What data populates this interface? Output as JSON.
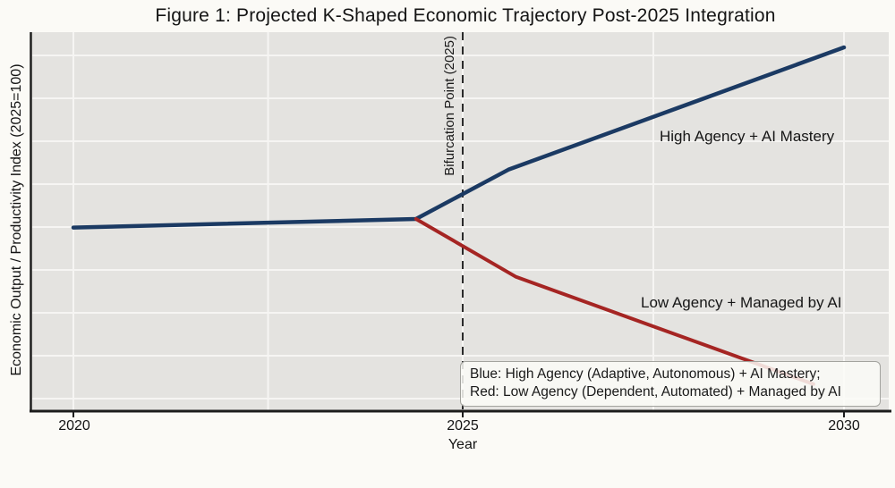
{
  "figure": {
    "title": "Figure 1: Projected K-Shaped Economic Trajectory Post-2025 Integration",
    "x_axis": {
      "label": "Year",
      "ticks": [
        "2020",
        "2025",
        "2030"
      ]
    },
    "y_axis": {
      "label": "Economic Output / Productivity Index (2025=100)",
      "numeric_ticks_shown": false
    },
    "bifurcation_line_label": "Bifurcation Point (2025)",
    "line_labels": {
      "high": "High Agency + AI Mastery",
      "low": "Low Agency + Managed by AI"
    },
    "legend_box": {
      "line1": "Blue: High Agency (Adaptive, Autonomous) + AI Mastery;",
      "line2": "Red: Low Agency (Dependent, Automated) + Managed by AI"
    },
    "colors": {
      "high_line": "#1b3a63",
      "low_line": "#a52523",
      "plot_background": "#e4e3e0",
      "page_background": "#fbfaf6",
      "gridline": "#f6f5f3",
      "axis_spine": "#1c1c1c",
      "dashed_line": "#2b2b2b"
    }
  },
  "chart_data": {
    "type": "line",
    "title": "Figure 1: Projected K-Shaped Economic Trajectory Post-2025 Integration",
    "xlabel": "Year",
    "ylabel": "Economic Output / Productivity Index (2025=100)",
    "x_ticks": [
      2020,
      2025,
      2030
    ],
    "x_gridline_years": [
      2020,
      2022.5,
      2025,
      2027.5,
      2030
    ],
    "xlim": [
      2019.47,
      2030.6
    ],
    "grid": true,
    "y_axis_numeric_labels_shown": false,
    "note": "Y values estimated from geometry; index normalized to 2025=100",
    "bifurcation": {
      "year": 2024.4,
      "index": 100,
      "dashed_marker_year": 2025
    },
    "series": [
      {
        "name": "High Agency + AI Mastery",
        "color": "#1b3a63",
        "points": [
          [
            2020,
            98
          ],
          [
            2024.4,
            100
          ],
          [
            2025.6,
            111.5
          ],
          [
            2030,
            140
          ]
        ]
      },
      {
        "name": "Low Agency + Managed by AI",
        "color": "#a52523",
        "points": [
          [
            2024.4,
            100
          ],
          [
            2025.7,
            86.5
          ],
          [
            2029.6,
            61.5
          ]
        ]
      }
    ],
    "annotations": [
      {
        "text": "Bifurcation Point (2025)",
        "type": "dashed-vertical-line-label",
        "x": 2025
      },
      {
        "text": "High Agency + AI Mastery",
        "type": "series-label"
      },
      {
        "text": "Low Agency + Managed by AI",
        "type": "series-label"
      },
      {
        "text": "Blue: High Agency (Adaptive, Autonomous) + AI Mastery; Red: Low Agency (Dependent, Automated) + Managed by AI",
        "type": "legend-text-box",
        "position": "lower right"
      }
    ]
  }
}
